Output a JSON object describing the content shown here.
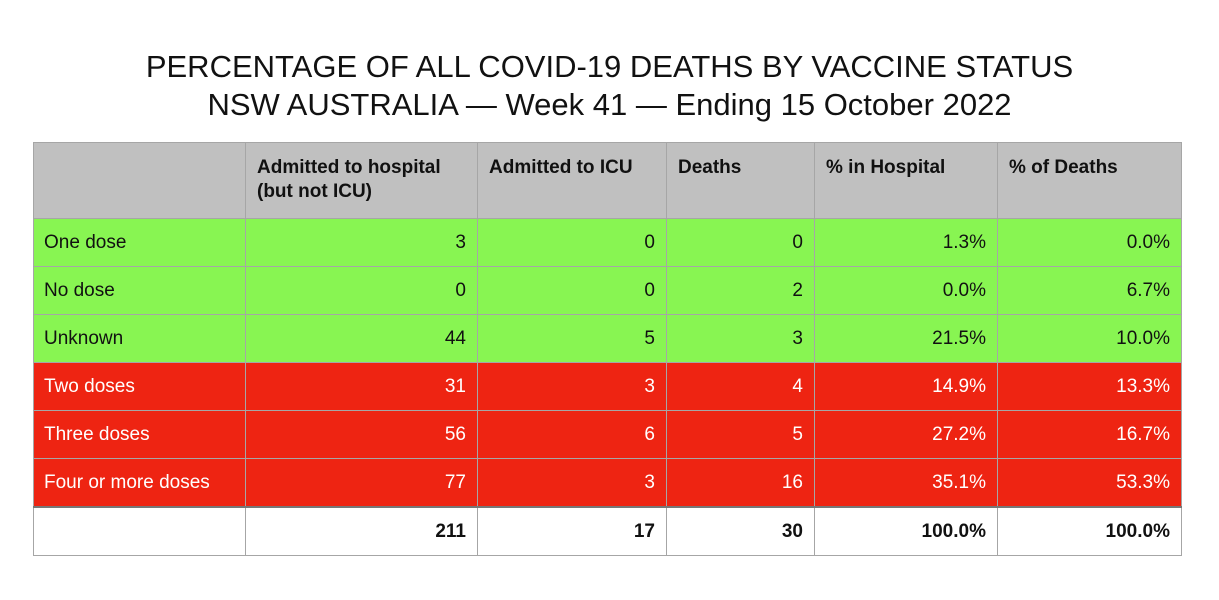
{
  "title_line1": "PERCENTAGE OF ALL COVID-19 DEATHS BY VACCINE STATUS",
  "title_line2": "NSW AUSTRALIA — Week 41 — Ending 15 October 2022",
  "colors": {
    "header_bg": "#c0c0c0",
    "green": "#88f552",
    "red": "#ee2412"
  },
  "chart_data": {
    "type": "table",
    "title": "PERCENTAGE OF ALL COVID-19 DEATHS BY VACCINE STATUS\nNSW AUSTRALIA — Week 41 — Ending 15 October 2022",
    "columns": [
      "",
      "Admitted to hospital (but not ICU)",
      "Admitted to ICU",
      "Deaths",
      "% in Hospital",
      "% of Deaths"
    ],
    "rows": [
      {
        "label": "One dose",
        "color": "green",
        "values": [
          "3",
          "0",
          "0",
          "1.3%",
          "0.0%"
        ]
      },
      {
        "label": "No dose",
        "color": "green",
        "values": [
          "0",
          "0",
          "2",
          "0.0%",
          "6.7%"
        ]
      },
      {
        "label": "Unknown",
        "color": "green",
        "values": [
          "44",
          "5",
          "3",
          "21.5%",
          "10.0%"
        ]
      },
      {
        "label": "Two doses",
        "color": "red",
        "values": [
          "31",
          "3",
          "4",
          "14.9%",
          "13.3%"
        ]
      },
      {
        "label": "Three doses",
        "color": "red",
        "values": [
          "56",
          "6",
          "5",
          "27.2%",
          "16.7%"
        ]
      },
      {
        "label": "Four or more doses",
        "color": "red",
        "values": [
          "77",
          "3",
          "16",
          "35.1%",
          "53.3%"
        ]
      }
    ],
    "totals": [
      "",
      "211",
      "17",
      "30",
      "100.0%",
      "100.0%"
    ]
  }
}
